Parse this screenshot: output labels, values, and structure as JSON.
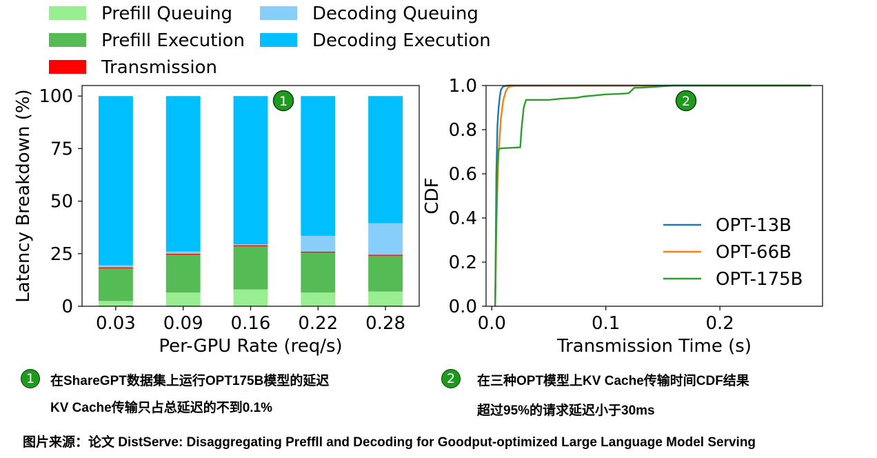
{
  "legend": {
    "items": [
      {
        "label": "Prefill Queuing",
        "color": "#98ee90"
      },
      {
        "label": "Decoding Queuing",
        "color": "#87cefa"
      },
      {
        "label": "Prefill Execution",
        "color": "#55bb55"
      },
      {
        "label": "Decoding Execution",
        "color": "#00bfff"
      },
      {
        "label": "Transmission",
        "color": "#ff0000"
      }
    ]
  },
  "chart_data": [
    {
      "type": "bar",
      "stacked": true,
      "title": "",
      "badge": "1",
      "xlabel": "Per-GPU Rate (req/s)",
      "ylabel": "Latency Breakdown (%)",
      "ylim": [
        0,
        105
      ],
      "yticks": [
        "0",
        "25",
        "50",
        "75",
        "100"
      ],
      "categories": [
        "0.03",
        "0.09",
        "0.16",
        "0.22",
        "0.28"
      ],
      "series": [
        {
          "name": "Prefill Queuing",
          "color": "#98ee90",
          "values": [
            2.5,
            6.5,
            8,
            6.5,
            7
          ]
        },
        {
          "name": "Prefill Execution",
          "color": "#55bb55",
          "values": [
            15.5,
            18,
            20.5,
            19,
            17
          ]
        },
        {
          "name": "Transmission",
          "color": "#ff0000",
          "values": [
            0.5,
            0.5,
            0.5,
            0.5,
            0.5
          ]
        },
        {
          "name": "Decoding Queuing",
          "color": "#87cefa",
          "values": [
            1,
            1,
            0.5,
            7.5,
            15
          ]
        },
        {
          "name": "Decoding Execution",
          "color": "#00bfff",
          "values": [
            80.5,
            74,
            70.5,
            66.5,
            60.5
          ]
        }
      ]
    },
    {
      "type": "line",
      "title": "",
      "badge": "2",
      "xlabel": "Transmission Time (s)",
      "ylabel": "CDF",
      "xlim": [
        -0.005,
        0.29
      ],
      "ylim": [
        0,
        1.0
      ],
      "xticks": [
        "0.0",
        "0.1",
        "0.2"
      ],
      "yticks": [
        "0.0",
        "0.2",
        "0.4",
        "0.6",
        "0.8",
        "1.0"
      ],
      "series": [
        {
          "name": "OPT-13B",
          "color": "#1f77b4",
          "x": [
            0.003,
            0.0035,
            0.004,
            0.005,
            0.006,
            0.007,
            0.008,
            0.009,
            0.01,
            0.012,
            0.015,
            0.28
          ],
          "y": [
            0,
            0.3,
            0.6,
            0.82,
            0.9,
            0.95,
            0.98,
            0.99,
            0.995,
            0.998,
            1.0,
            1.0
          ]
        },
        {
          "name": "OPT-66B",
          "color": "#ff7f0e",
          "x": [
            0.003,
            0.004,
            0.005,
            0.006,
            0.008,
            0.01,
            0.012,
            0.014,
            0.016,
            0.02,
            0.28
          ],
          "y": [
            0,
            0.35,
            0.55,
            0.7,
            0.85,
            0.93,
            0.97,
            0.99,
            0.995,
            0.998,
            1.0
          ]
        },
        {
          "name": "OPT-175B",
          "color": "#2ca02c",
          "x": [
            0.003,
            0.004,
            0.005,
            0.006,
            0.007,
            0.025,
            0.026,
            0.028,
            0.03,
            0.05,
            0.06,
            0.075,
            0.08,
            0.09,
            0.1,
            0.11,
            0.12,
            0.125,
            0.13,
            0.14,
            0.15,
            0.16,
            0.17,
            0.28
          ],
          "y": [
            0,
            0.4,
            0.65,
            0.71,
            0.715,
            0.72,
            0.8,
            0.9,
            0.935,
            0.935,
            0.94,
            0.945,
            0.95,
            0.955,
            0.96,
            0.962,
            0.965,
            0.99,
            0.99,
            0.993,
            0.997,
            1.0,
            1.0,
            1.0
          ]
        }
      ]
    }
  ],
  "annotations": {
    "left": {
      "badge": "1",
      "line1": "在ShareGPT数据集上运行OPT175B模型的延迟",
      "line2": "KV Cache传输只占总延迟的不到0.1%"
    },
    "right": {
      "badge": "2",
      "line1": "在三种OPT模型上KV Cache传输时间CDF结果",
      "line2": "超过95%的请求延迟小于30ms"
    }
  },
  "source": "图片来源：论文 DistServe: Disaggregating Preffll and Decoding for Goodput-optimized Large Language Model Serving"
}
